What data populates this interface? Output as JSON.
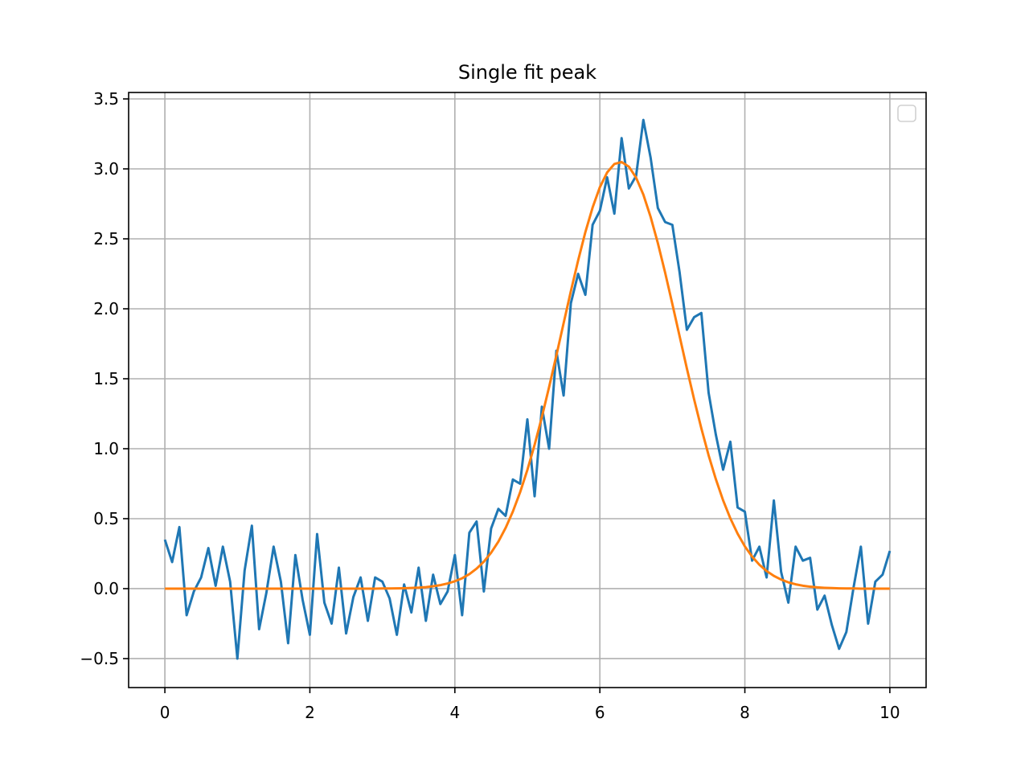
{
  "chart_data": {
    "type": "line",
    "title": "Single fit peak",
    "x": [
      0,
      0.1,
      0.2,
      0.3,
      0.4,
      0.5,
      0.6,
      0.7,
      0.8,
      0.9,
      1,
      1.1,
      1.2,
      1.3,
      1.4,
      1.5,
      1.6,
      1.7,
      1.8,
      1.9,
      2,
      2.1,
      2.2,
      2.3,
      2.4,
      2.5,
      2.6,
      2.7,
      2.8,
      2.9,
      3,
      3.1,
      3.2,
      3.3,
      3.4,
      3.5,
      3.6,
      3.7,
      3.8,
      3.9,
      4,
      4.1,
      4.2,
      4.3,
      4.4,
      4.5,
      4.6,
      4.7,
      4.8,
      4.9,
      5,
      5.1,
      5.2,
      5.3,
      5.4,
      5.5,
      5.6,
      5.7,
      5.8,
      5.9,
      6,
      6.1,
      6.2,
      6.3,
      6.4,
      6.5,
      6.6,
      6.7,
      6.8,
      6.9,
      7,
      7.1,
      7.2,
      7.3,
      7.4,
      7.5,
      7.6,
      7.7,
      7.8,
      7.9,
      8,
      8.1,
      8.2,
      8.3,
      8.4,
      8.5,
      8.6,
      8.7,
      8.8,
      8.9,
      9,
      9.1,
      9.2,
      9.3,
      9.4,
      9.5,
      9.6,
      9.7,
      9.8,
      9.9,
      10
    ],
    "series": [
      {
        "color": "#1f77b4",
        "values": [
          0.35,
          0.19,
          0.44,
          -0.19,
          -0.02,
          0.08,
          0.29,
          0.02,
          0.3,
          0.05,
          -0.5,
          0.13,
          0.45,
          -0.29,
          -0.03,
          0.3,
          0.05,
          -0.39,
          0.24,
          -0.08,
          -0.33,
          0.39,
          -0.1,
          -0.25,
          0.15,
          -0.32,
          -0.06,
          0.08,
          -0.23,
          0.08,
          0.05,
          -0.07,
          -0.33,
          0.03,
          -0.17,
          0.15,
          -0.23,
          0.1,
          -0.11,
          -0.02,
          0.24,
          -0.19,
          0.4,
          0.48,
          -0.02,
          0.43,
          0.57,
          0.52,
          0.78,
          0.75,
          1.21,
          0.66,
          1.3,
          1.0,
          1.7,
          1.38,
          2.04,
          2.25,
          2.1,
          2.6,
          2.7,
          2.94,
          2.68,
          3.22,
          2.86,
          2.95,
          3.35,
          3.08,
          2.72,
          2.62,
          2.6,
          2.26,
          1.85,
          1.94,
          1.97,
          1.4,
          1.1,
          0.85,
          1.05,
          0.58,
          0.55,
          0.2,
          0.3,
          0.08,
          0.63,
          0.12,
          -0.1,
          0.3,
          0.2,
          0.22,
          -0.15,
          -0.05,
          -0.26,
          -0.43,
          -0.31,
          0.01,
          0.3,
          -0.25,
          0.05,
          0.1,
          0.27
        ]
      },
      {
        "color": "#ff7f0e",
        "values": [
          0,
          0,
          0,
          0,
          0,
          0,
          0,
          0,
          0,
          0,
          0,
          0,
          0,
          0,
          0,
          0,
          0,
          0,
          0,
          0,
          0,
          0,
          0,
          0,
          0,
          0,
          0,
          0,
          0,
          0,
          0.001,
          0.001,
          0.002,
          0.003,
          0.005,
          0.007,
          0.011,
          0.017,
          0.025,
          0.037,
          0.053,
          0.074,
          0.104,
          0.143,
          0.193,
          0.257,
          0.336,
          0.434,
          0.551,
          0.689,
          0.848,
          1.028,
          1.226,
          1.441,
          1.666,
          1.897,
          2.126,
          2.345,
          2.548,
          2.724,
          2.869,
          2.974,
          3.035,
          3.049,
          3.016,
          2.937,
          2.816,
          2.657,
          2.469,
          2.259,
          2.034,
          1.804,
          1.574,
          1.353,
          1.145,
          0.953,
          0.782,
          0.631,
          0.502,
          0.393,
          0.302,
          0.229,
          0.171,
          0.126,
          0.091,
          0.065,
          0.045,
          0.031,
          0.021,
          0.014,
          0.009,
          0.006,
          0.004,
          0.002,
          0.001,
          0.001,
          0,
          0,
          0,
          0,
          0
        ]
      }
    ],
    "xlim": [
      -0.5,
      10.5
    ],
    "xticks": [
      0,
      2,
      4,
      6,
      8,
      10
    ],
    "ylim": [
      -0.707,
      3.546
    ],
    "yticks": [
      {
        "value": -0.5,
        "label": "−0.5"
      },
      {
        "value": 0,
        "label": "0.0"
      },
      {
        "value": 0.5,
        "label": "0.5"
      },
      {
        "value": 1,
        "label": "1.0"
      },
      {
        "value": 1.5,
        "label": "1.5"
      },
      {
        "value": 2,
        "label": "2.0"
      },
      {
        "value": 2.5,
        "label": "2.5"
      },
      {
        "value": 3,
        "label": "3.0"
      },
      {
        "value": 3.5,
        "label": "3.5"
      }
    ],
    "grid": true,
    "legend": "upper right"
  }
}
